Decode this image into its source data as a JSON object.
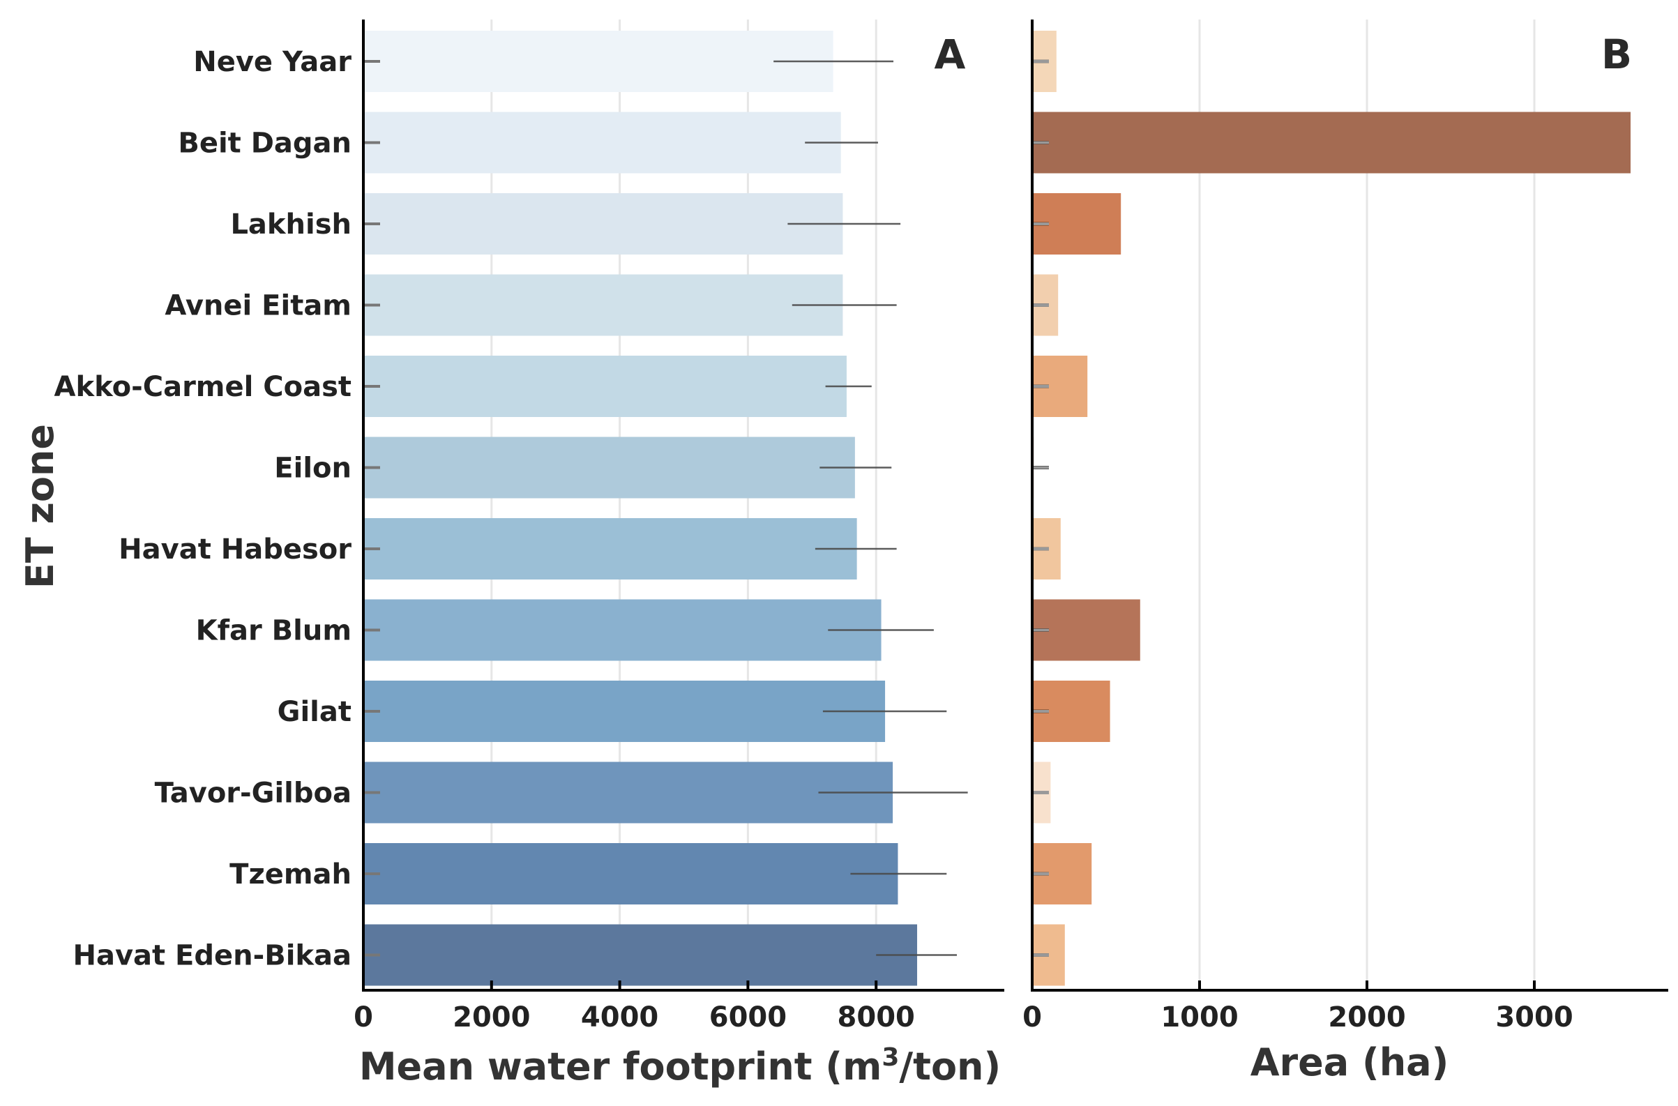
{
  "chart_data": [
    {
      "type": "bar",
      "orientation": "horizontal",
      "panel_label": "A",
      "categories": [
        "Neve Yaar",
        "Beit Dagan",
        "Lakhish",
        "Avnei Eitam",
        "Akko-Carmel Coast",
        "Eilon",
        "Havat Habesor",
        "Kfar Blum",
        "Gilat",
        "Tavor-Gilboa",
        "Tzemah",
        "Havat Eden-Bikaa"
      ],
      "values": [
        7330,
        7450,
        7480,
        7480,
        7540,
        7670,
        7700,
        8080,
        8140,
        8260,
        8340,
        8640
      ],
      "error_bars": [
        [
          6400,
          8270
        ],
        [
          6890,
          8030
        ],
        [
          6620,
          8380
        ],
        [
          6690,
          8320
        ],
        [
          7210,
          7930
        ],
        [
          7120,
          8240
        ],
        [
          7050,
          8320
        ],
        [
          7250,
          8900
        ],
        [
          7170,
          9100
        ],
        [
          7100,
          9430
        ],
        [
          7600,
          9100
        ],
        [
          8000,
          9260
        ]
      ],
      "colors": [
        "#eef4f9",
        "#e3ecf4",
        "#dbe6ef",
        "#d0e1ea",
        "#c2d9e5",
        "#aecadb",
        "#9bbfd6",
        "#8ab1cf",
        "#79a4c7",
        "#6f95bc",
        "#6287b0",
        "#5c789d"
      ],
      "xlabel_main": "Mean water footprint (m",
      "xlabel_sup": "3",
      "xlabel_end": "/ton)",
      "ylabel": "ET zone",
      "xlim": [
        0,
        10000
      ],
      "xticks": [
        0,
        2000,
        4000,
        6000,
        8000
      ],
      "xtick_labels": [
        "0",
        "2000",
        "4000",
        "6000",
        "8000"
      ],
      "grid": true
    },
    {
      "type": "bar",
      "orientation": "horizontal",
      "panel_label": "B",
      "categories": [
        "Neve Yaar",
        "Beit Dagan",
        "Lakhish",
        "Avnei Eitam",
        "Akko-Carmel Coast",
        "Eilon",
        "Havat Habesor",
        "Kfar Blum",
        "Gilat",
        "Tavor-Gilboa",
        "Tzemah",
        "Havat Eden-Bikaa"
      ],
      "values": [
        145,
        3575,
        530,
        155,
        330,
        10,
        170,
        645,
        465,
        110,
        355,
        195
      ],
      "error_bars": [
        [
          0,
          100
        ],
        [
          0,
          100
        ],
        [
          0,
          100
        ],
        [
          0,
          100
        ],
        [
          0,
          100
        ],
        [
          0,
          100
        ],
        [
          0,
          100
        ],
        [
          0,
          100
        ],
        [
          0,
          100
        ],
        [
          0,
          100
        ],
        [
          0,
          100
        ],
        [
          0,
          100
        ]
      ],
      "colors": [
        "#f4d7b8",
        "#a46b52",
        "#cf7e56",
        "#f2cfae",
        "#e9aa7c",
        "#fbe9dc",
        "#f1c69e",
        "#b57459",
        "#d98b5f",
        "#f8e1cd",
        "#e29a6c",
        "#efbb8f"
      ],
      "error_colors": [
        "#777777",
        "#3a1a0a",
        "#5a2a10",
        "#777777",
        "#555555",
        "#111111",
        "#777777",
        "#3a1a0a",
        "#5a2a10",
        "#999999",
        "#555555",
        "#777777"
      ],
      "xlabel": "Area (ha)",
      "xlim": [
        0,
        3800
      ],
      "xticks": [
        0,
        1000,
        2000,
        3000
      ],
      "xtick_labels": [
        "0",
        "1000",
        "2000",
        "3000"
      ],
      "grid": true
    }
  ]
}
